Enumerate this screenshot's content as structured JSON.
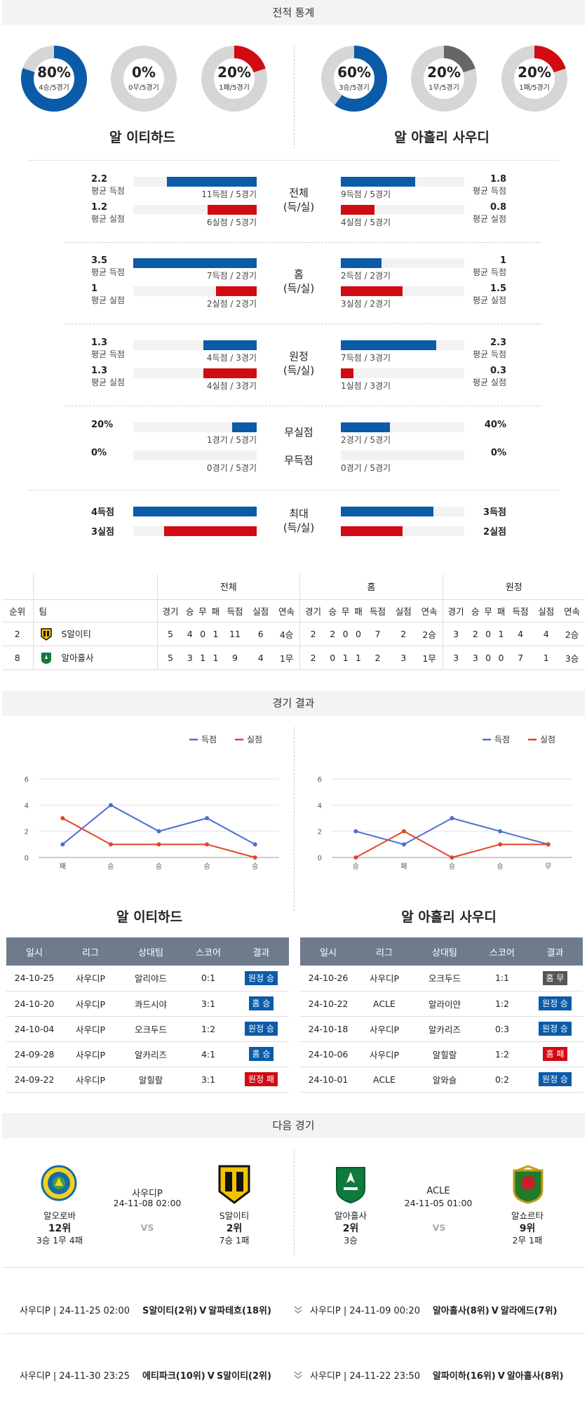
{
  "section_titles": {
    "stats": "전적 통계",
    "results": "경기 결과",
    "next": "다음 경기"
  },
  "colors": {
    "blue": "#0b5ba8",
    "red": "#d10b12",
    "gray": "#666666",
    "track": "#d6d6d6"
  },
  "teams": {
    "left": "알 이티하드",
    "right": "알 아흘리 사우디"
  },
  "donuts": [
    {
      "pct": "80%",
      "sub": "4승/5경기",
      "fraction": 0.8,
      "color": "#0b5ba8"
    },
    {
      "pct": "0%",
      "sub": "0무/5경기",
      "fraction": 0,
      "color": "#666666"
    },
    {
      "pct": "20%",
      "sub": "1패/5경기",
      "fraction": 0.2,
      "color": "#d10b12"
    },
    {
      "pct": "60%",
      "sub": "3승/5경기",
      "fraction": 0.6,
      "color": "#0b5ba8"
    },
    {
      "pct": "20%",
      "sub": "1무/5경기",
      "fraction": 0.2,
      "color": "#666666"
    },
    {
      "pct": "20%",
      "sub": "1패/5경기",
      "fraction": 0.2,
      "color": "#d10b12"
    }
  ],
  "stat_groups": [
    {
      "label1": "전체",
      "label2": "(득/실)",
      "left": [
        {
          "value": "2.2",
          "label": "평균 득점",
          "cap": "11득점 / 5경기",
          "fraction": 0.73,
          "color": "blue"
        },
        {
          "value": "1.2",
          "label": "평균 실점",
          "cap": "6실점 / 5경기",
          "fraction": 0.4,
          "color": "red"
        }
      ],
      "right": [
        {
          "value": "1.8",
          "label": "평균 득점",
          "cap": "9득점 / 5경기",
          "fraction": 0.6,
          "color": "blue"
        },
        {
          "value": "0.8",
          "label": "평균 실점",
          "cap": "4실점 / 5경기",
          "fraction": 0.27,
          "color": "red"
        }
      ]
    },
    {
      "label1": "홈",
      "label2": "(득/실)",
      "left": [
        {
          "value": "3.5",
          "label": "평균 득점",
          "cap": "7득점 / 2경기",
          "fraction": 1.0,
          "color": "blue"
        },
        {
          "value": "1",
          "label": "평균 실점",
          "cap": "2실점 / 2경기",
          "fraction": 0.33,
          "color": "red"
        }
      ],
      "right": [
        {
          "value": "1",
          "label": "평균 득점",
          "cap": "2득점 / 2경기",
          "fraction": 0.33,
          "color": "blue"
        },
        {
          "value": "1.5",
          "label": "평균 실점",
          "cap": "3실점 / 2경기",
          "fraction": 0.5,
          "color": "red"
        }
      ]
    },
    {
      "label1": "원정",
      "label2": "(득/실)",
      "left": [
        {
          "value": "1.3",
          "label": "평균 득점",
          "cap": "4득점 / 3경기",
          "fraction": 0.43,
          "color": "blue"
        },
        {
          "value": "1.3",
          "label": "평균 실점",
          "cap": "4실점 / 3경기",
          "fraction": 0.43,
          "color": "red"
        }
      ],
      "right": [
        {
          "value": "2.3",
          "label": "평균 득점",
          "cap": "7득점 / 3경기",
          "fraction": 0.77,
          "color": "blue"
        },
        {
          "value": "0.3",
          "label": "평균 실점",
          "cap": "1실점 / 3경기",
          "fraction": 0.1,
          "color": "red"
        }
      ]
    }
  ],
  "shutout": {
    "label_a": "무실점",
    "label_b": "무득점",
    "left": [
      {
        "value": "20%",
        "cap": "1경기 / 5경기",
        "fraction": 0.2,
        "color": "blue"
      },
      {
        "value": "0%",
        "cap": "0경기 / 5경기",
        "fraction": 0,
        "color": "blue"
      }
    ],
    "right": [
      {
        "value": "40%",
        "cap": "2경기 / 5경기",
        "fraction": 0.4,
        "color": "blue"
      },
      {
        "value": "0%",
        "cap": "0경기 / 5경기",
        "fraction": 0,
        "color": "blue"
      }
    ]
  },
  "maxrow": {
    "label1": "최대",
    "label2": "(득/실)",
    "left": [
      {
        "value": "4득점",
        "fraction": 1.0,
        "color": "blue"
      },
      {
        "value": "3실점",
        "fraction": 0.75,
        "color": "red"
      }
    ],
    "right": [
      {
        "value": "3득점",
        "fraction": 0.75,
        "color": "blue"
      },
      {
        "value": "2실점",
        "fraction": 0.5,
        "color": "red"
      }
    ]
  },
  "standings": {
    "group_headers": [
      "전체",
      "홈",
      "원정"
    ],
    "col_headers": [
      "순위",
      "팀"
    ],
    "sub_headers": [
      "경기",
      "승",
      "무",
      "패",
      "득점",
      "실점",
      "연속"
    ],
    "rows": [
      {
        "rank": "2",
        "team": "S알이티",
        "crest": "ittihad",
        "cells": [
          "5",
          "4",
          "0",
          "1",
          "11",
          "6",
          "4승",
          "2",
          "2",
          "0",
          "0",
          "7",
          "2",
          "2승",
          "3",
          "2",
          "0",
          "1",
          "4",
          "4",
          "2승"
        ]
      },
      {
        "rank": "8",
        "team": "알아흘사",
        "crest": "ahli",
        "cells": [
          "5",
          "3",
          "1",
          "1",
          "9",
          "4",
          "1무",
          "2",
          "0",
          "1",
          "1",
          "2",
          "3",
          "1무",
          "3",
          "3",
          "0",
          "0",
          "7",
          "1",
          "3승"
        ]
      }
    ]
  },
  "charts": [
    {
      "type": "line",
      "team": "알 이티하드",
      "legend": [
        "득점",
        "실점"
      ],
      "ylim": [
        0,
        6
      ],
      "yticks": [
        "0",
        "2",
        "4",
        "6"
      ],
      "x": [
        "패",
        "승",
        "승",
        "승",
        "승"
      ],
      "series": [
        {
          "name": "득점",
          "color": "#4a6fd0",
          "values": [
            1,
            4,
            2,
            3,
            1
          ]
        },
        {
          "name": "실점",
          "color": "#e0452a",
          "values": [
            3,
            1,
            1,
            1,
            0
          ]
        }
      ]
    },
    {
      "type": "line",
      "team": "알 아흘리 사우디",
      "legend": [
        "득점",
        "실점"
      ],
      "ylim": [
        0,
        6
      ],
      "yticks": [
        "0",
        "2",
        "4",
        "6"
      ],
      "x": [
        "승",
        "패",
        "승",
        "승",
        "무"
      ],
      "series": [
        {
          "name": "득점",
          "color": "#4a6fd0",
          "values": [
            2,
            1,
            3,
            2,
            1
          ]
        },
        {
          "name": "실점",
          "color": "#e0452a",
          "values": [
            0,
            2,
            0,
            1,
            1
          ]
        }
      ]
    }
  ],
  "results_headers": [
    "일시",
    "리그",
    "상대팀",
    "스코어",
    "결과"
  ],
  "results": {
    "left": [
      {
        "date": "24-10-25",
        "league": "사우디P",
        "opp": "알리야드",
        "score": "0:1",
        "result": "원정 승",
        "color": "blue"
      },
      {
        "date": "24-10-20",
        "league": "사우디P",
        "opp": "콰드시야",
        "score": "3:1",
        "result": "홈 승",
        "color": "blue"
      },
      {
        "date": "24-10-04",
        "league": "사우디P",
        "opp": "오크두드",
        "score": "1:2",
        "result": "원정 승",
        "color": "blue"
      },
      {
        "date": "24-09-28",
        "league": "사우디P",
        "opp": "알카리즈",
        "score": "4:1",
        "result": "홈 승",
        "color": "blue"
      },
      {
        "date": "24-09-22",
        "league": "사우디P",
        "opp": "알힐랄",
        "score": "3:1",
        "result": "원정 패",
        "color": "red"
      }
    ],
    "right": [
      {
        "date": "24-10-26",
        "league": "사우디P",
        "opp": "오크두드",
        "score": "1:1",
        "result": "홈 무",
        "color": "gray"
      },
      {
        "date": "24-10-22",
        "league": "ACLE",
        "opp": "알라이얀",
        "score": "1:2",
        "result": "원정 승",
        "color": "blue"
      },
      {
        "date": "24-10-18",
        "league": "사우디P",
        "opp": "알카리즈",
        "score": "0:3",
        "result": "원정 승",
        "color": "blue"
      },
      {
        "date": "24-10-06",
        "league": "사우디P",
        "opp": "알힐랄",
        "score": "1:2",
        "result": "홈 패",
        "color": "red"
      },
      {
        "date": "24-10-01",
        "league": "ACLE",
        "opp": "알와슬",
        "score": "0:2",
        "result": "원정 승",
        "color": "blue"
      }
    ]
  },
  "next_matches": [
    {
      "league": "사우디P",
      "time": "24-11-08 02:00",
      "vs": "VS",
      "home": {
        "name": "알오로바",
        "rank": "12위",
        "record": "3승 1무 4패"
      },
      "away": {
        "name": "S알이티",
        "rank": "2위",
        "record": "7승 1패"
      }
    },
    {
      "league": "ACLE",
      "time": "24-11-05 01:00",
      "vs": "VS",
      "home": {
        "name": "알아흘사",
        "rank": "2위",
        "record": "3승"
      },
      "away": {
        "name": "알쇼르타",
        "rank": "9위",
        "record": "2무 1패"
      }
    }
  ],
  "fixtures": [
    {
      "left": {
        "meta": "사우디P | 24-11-25 02:00",
        "home": "S알이티(2위)",
        "sep": "V",
        "away": "알파테흐(18위)"
      },
      "right": {
        "meta": "사우디P | 24-11-09 00:20",
        "home": "알아흘사(8위)",
        "sep": "V",
        "away": "알라에드(7위)"
      }
    },
    {
      "left": {
        "meta": "사우디P | 24-11-30 23:25",
        "home": "에티파크(10위)",
        "sep": "V",
        "away": "S알이티(2위)"
      },
      "right": {
        "meta": "사우디P | 24-11-22 23:50",
        "home": "알파이하(16위)",
        "sep": "V",
        "away": "알아흘사(8위)"
      }
    }
  ]
}
